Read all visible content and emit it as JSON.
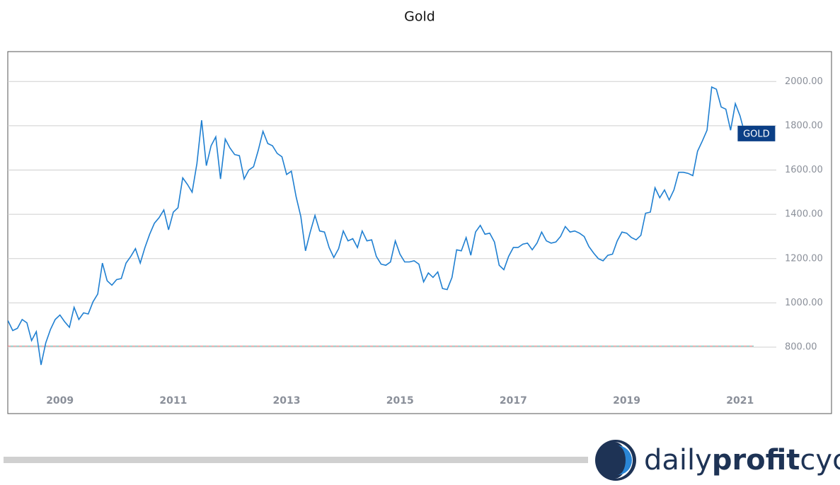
{
  "chart_data": {
    "type": "line",
    "title": "Gold",
    "series": [
      {
        "name": "GOLD",
        "color": "#1f7fd1",
        "x": [
          2008.083,
          2008.167,
          2008.25,
          2008.333,
          2008.417,
          2008.5,
          2008.583,
          2008.667,
          2008.75,
          2008.833,
          2008.917,
          2009,
          2009.083,
          2009.167,
          2009.25,
          2009.333,
          2009.417,
          2009.5,
          2009.583,
          2009.667,
          2009.75,
          2009.833,
          2009.917,
          2010,
          2010.083,
          2010.167,
          2010.25,
          2010.333,
          2010.417,
          2010.5,
          2010.583,
          2010.667,
          2010.75,
          2010.833,
          2010.917,
          2011,
          2011.083,
          2011.167,
          2011.25,
          2011.333,
          2011.417,
          2011.5,
          2011.583,
          2011.667,
          2011.75,
          2011.833,
          2011.917,
          2012,
          2012.083,
          2012.167,
          2012.25,
          2012.333,
          2012.417,
          2012.5,
          2012.583,
          2012.667,
          2012.75,
          2012.833,
          2012.917,
          2013,
          2013.083,
          2013.167,
          2013.25,
          2013.333,
          2013.417,
          2013.5,
          2013.583,
          2013.667,
          2013.75,
          2013.833,
          2013.917,
          2014,
          2014.083,
          2014.167,
          2014.25,
          2014.333,
          2014.417,
          2014.5,
          2014.583,
          2014.667,
          2014.75,
          2014.833,
          2014.917,
          2015,
          2015.083,
          2015.167,
          2015.25,
          2015.333,
          2015.417,
          2015.5,
          2015.583,
          2015.667,
          2015.75,
          2015.833,
          2015.917,
          2016,
          2016.083,
          2016.167,
          2016.25,
          2016.333,
          2016.417,
          2016.5,
          2016.583,
          2016.667,
          2016.75,
          2016.833,
          2016.917,
          2017,
          2017.083,
          2017.167,
          2017.25,
          2017.333,
          2017.417,
          2017.5,
          2017.583,
          2017.667,
          2017.75,
          2017.833,
          2017.917,
          2018,
          2018.083,
          2018.167,
          2018.25,
          2018.333,
          2018.417,
          2018.5,
          2018.583,
          2018.667,
          2018.75,
          2018.833,
          2018.917,
          2019,
          2019.083,
          2019.167,
          2019.25,
          2019.333,
          2019.417,
          2019.5,
          2019.583,
          2019.667,
          2019.75,
          2019.833,
          2019.917,
          2020,
          2020.083,
          2020.167,
          2020.25,
          2020.333,
          2020.417,
          2020.5,
          2020.583,
          2020.667,
          2020.75,
          2020.833,
          2020.917,
          2021,
          2021.083
        ],
        "values": [
          920,
          875,
          885,
          925,
          910,
          830,
          870,
          720,
          820,
          880,
          925,
          945,
          915,
          890,
          980,
          925,
          955,
          950,
          1005,
          1040,
          1180,
          1100,
          1080,
          1105,
          1110,
          1180,
          1210,
          1245,
          1180,
          1250,
          1310,
          1360,
          1385,
          1420,
          1330,
          1410,
          1430,
          1565,
          1535,
          1500,
          1630,
          1825,
          1620,
          1710,
          1750,
          1560,
          1740,
          1700,
          1670,
          1665,
          1560,
          1600,
          1615,
          1690,
          1775,
          1720,
          1710,
          1675,
          1660,
          1580,
          1595,
          1480,
          1390,
          1235,
          1320,
          1395,
          1325,
          1320,
          1250,
          1205,
          1245,
          1325,
          1280,
          1290,
          1250,
          1325,
          1280,
          1285,
          1210,
          1175,
          1170,
          1185,
          1280,
          1220,
          1185,
          1185,
          1190,
          1175,
          1095,
          1135,
          1115,
          1140,
          1065,
          1060,
          1115,
          1240,
          1235,
          1295,
          1215,
          1320,
          1350,
          1310,
          1315,
          1275,
          1170,
          1150,
          1210,
          1250,
          1250,
          1265,
          1270,
          1240,
          1270,
          1320,
          1280,
          1270,
          1275,
          1300,
          1345,
          1320,
          1325,
          1315,
          1300,
          1255,
          1225,
          1200,
          1190,
          1215,
          1220,
          1280,
          1320,
          1315,
          1295,
          1285,
          1305,
          1405,
          1410,
          1520,
          1475,
          1510,
          1465,
          1510,
          1590,
          1590,
          1585,
          1575,
          1685,
          1730,
          1780,
          1975,
          1965,
          1885,
          1875,
          1780,
          1900,
          1845,
          1765
        ]
      }
    ],
    "reference_value": 805,
    "xlim": [
      2008.08,
      2021.64
    ],
    "xticks": [
      2009,
      2011,
      2013,
      2015,
      2017,
      2019,
      2021
    ],
    "ylim": [
      500,
      2135
    ],
    "yticks": [
      {
        "value": 800,
        "label": "800.00"
      },
      {
        "value": 1000,
        "label": "1000.00"
      },
      {
        "value": 1200,
        "label": "1200.00"
      },
      {
        "value": 1400,
        "label": "1400.00"
      },
      {
        "value": 1600,
        "label": "1600.00"
      },
      {
        "value": 1800,
        "label": "1800.00"
      },
      {
        "value": 2000,
        "label": "2000.00"
      }
    ],
    "grid": true
  },
  "logo": {
    "part1": "daily",
    "part2": "profit",
    "part3": "cycle"
  }
}
